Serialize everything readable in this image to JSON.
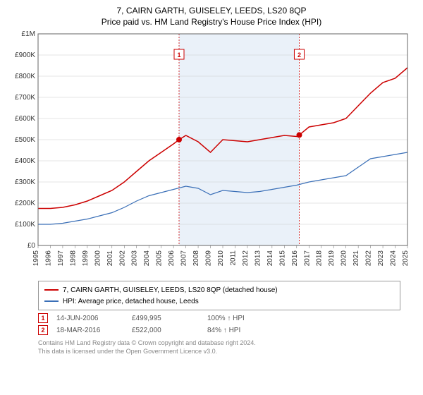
{
  "title": "7, CAIRN GARTH, GUISELEY, LEEDS, LS20 8QP",
  "subtitle": "Price paid vs. HM Land Registry's House Price Index (HPI)",
  "chart": {
    "type": "line",
    "background_color": "#ffffff",
    "grid_color": "#cccccc",
    "plot_border_color": "#666666",
    "shaded_band_color": "#eaf1f9",
    "shaded_band_x": [
      2006.45,
      2016.21
    ],
    "series": [
      {
        "name": "property",
        "label": "7, CAIRN GARTH, GUISELEY, LEEDS, LS20 8QP (detached house)",
        "color": "#cc0000",
        "line_width": 1.5,
        "x": [
          1995,
          1996,
          1997,
          1998,
          1999,
          2000,
          2001,
          2002,
          2003,
          2004,
          2005,
          2006,
          2006.45,
          2007,
          2008,
          2009,
          2010,
          2011,
          2012,
          2013,
          2014,
          2015,
          2016,
          2016.21,
          2017,
          2018,
          2019,
          2020,
          2021,
          2022,
          2023,
          2024,
          2025
        ],
        "y": [
          175000,
          175000,
          180000,
          192000,
          210000,
          235000,
          260000,
          300000,
          350000,
          400000,
          440000,
          480000,
          499995,
          520000,
          490000,
          440000,
          500000,
          495000,
          490000,
          500000,
          510000,
          520000,
          515000,
          522000,
          560000,
          570000,
          580000,
          600000,
          660000,
          720000,
          770000,
          790000,
          840000
        ]
      },
      {
        "name": "hpi",
        "label": "HPI: Average price, detached house, Leeds",
        "color": "#3a6fb7",
        "line_width": 1.2,
        "x": [
          1995,
          1996,
          1997,
          1998,
          1999,
          2000,
          2001,
          2002,
          2003,
          2004,
          2005,
          2006,
          2007,
          2008,
          2009,
          2010,
          2011,
          2012,
          2013,
          2014,
          2015,
          2016,
          2017,
          2018,
          2019,
          2020,
          2021,
          2022,
          2023,
          2024,
          2025
        ],
        "y": [
          100000,
          100000,
          105000,
          115000,
          125000,
          140000,
          155000,
          180000,
          210000,
          235000,
          250000,
          265000,
          280000,
          270000,
          240000,
          260000,
          255000,
          250000,
          255000,
          265000,
          275000,
          285000,
          300000,
          310000,
          320000,
          330000,
          370000,
          410000,
          420000,
          430000,
          440000
        ]
      }
    ],
    "markers": [
      {
        "id": "1",
        "x": 2006.45,
        "y": 499995,
        "color": "#cc0000",
        "vline_dash": "2,2"
      },
      {
        "id": "2",
        "x": 2016.21,
        "y": 522000,
        "color": "#cc0000",
        "vline_dash": "2,2"
      }
    ],
    "ylim": [
      0,
      1000000
    ],
    "ytick_step": 100000,
    "ytick_labels": [
      "£0",
      "£100K",
      "£200K",
      "£300K",
      "£400K",
      "£500K",
      "£600K",
      "£700K",
      "£800K",
      "£900K",
      "£1M"
    ],
    "xlim": [
      1995,
      2025
    ],
    "xtick_step": 1,
    "label_fontsize": 10
  },
  "legend": {
    "items": [
      {
        "color": "#cc0000",
        "text": "7, CAIRN GARTH, GUISELEY, LEEDS, LS20 8QP (detached house)"
      },
      {
        "color": "#3a6fb7",
        "text": "HPI: Average price, detached house, Leeds"
      }
    ]
  },
  "sales": [
    {
      "badge": "1",
      "badge_color": "#cc0000",
      "date": "14-JUN-2006",
      "price": "£499,995",
      "pct": "100%",
      "arrow": "↑",
      "vs": "HPI"
    },
    {
      "badge": "2",
      "badge_color": "#cc0000",
      "date": "18-MAR-2016",
      "price": "£522,000",
      "pct": "84%",
      "arrow": "↑",
      "vs": "HPI"
    }
  ],
  "footer": {
    "line1": "Contains HM Land Registry data © Crown copyright and database right 2024.",
    "line2": "This data is licensed under the Open Government Licence v3.0."
  }
}
